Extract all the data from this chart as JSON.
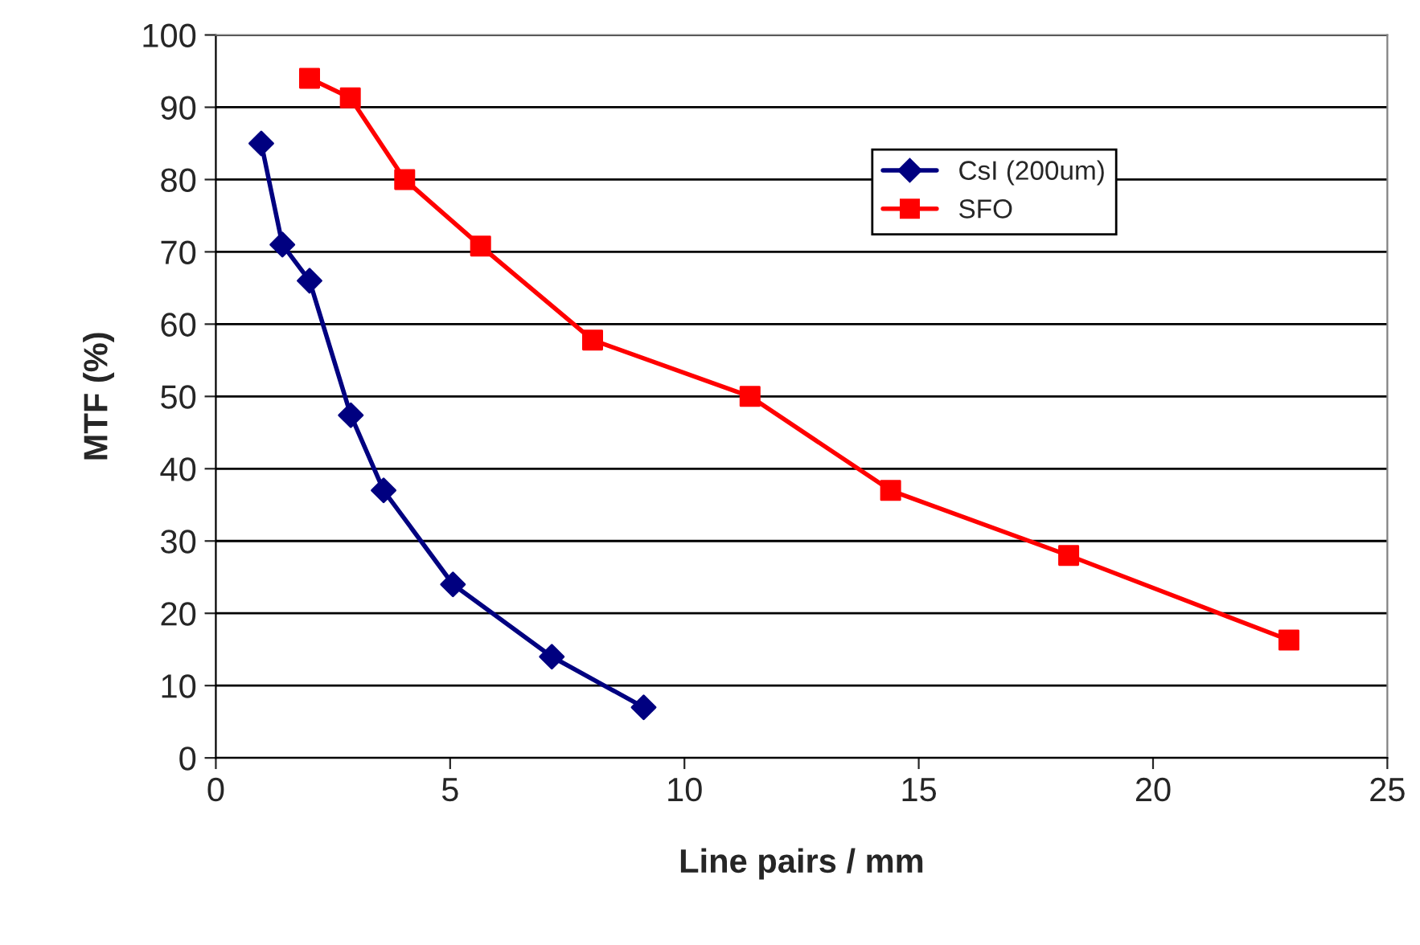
{
  "chart_data": {
    "type": "line",
    "xlabel": "Line pairs / mm",
    "ylabel": "MTF (%)",
    "xlim": [
      0,
      25
    ],
    "xticks": [
      0,
      5,
      10,
      15,
      20,
      25
    ],
    "ylim": [
      0,
      100
    ],
    "yticks": [
      0,
      10,
      20,
      30,
      40,
      50,
      60,
      70,
      80,
      90,
      100
    ],
    "grid": "y",
    "legend": "top right",
    "series": [
      {
        "name": "CsI (200um)",
        "color": "#000080",
        "marker": "diamond",
        "x": [
          0.97,
          1.42,
          2.0,
          2.88,
          3.58,
          5.06,
          7.17,
          9.13
        ],
        "values": [
          85,
          71,
          66,
          47.4,
          37,
          24,
          14,
          7
        ]
      },
      {
        "name": "SFO",
        "color": "#ff0000",
        "marker": "square",
        "x": [
          2.0,
          2.87,
          4.03,
          5.65,
          8.04,
          11.4,
          14.4,
          18.2,
          22.9
        ],
        "values": [
          94,
          91.3,
          80,
          70.8,
          57.8,
          50,
          37,
          28,
          16.3
        ]
      }
    ]
  }
}
